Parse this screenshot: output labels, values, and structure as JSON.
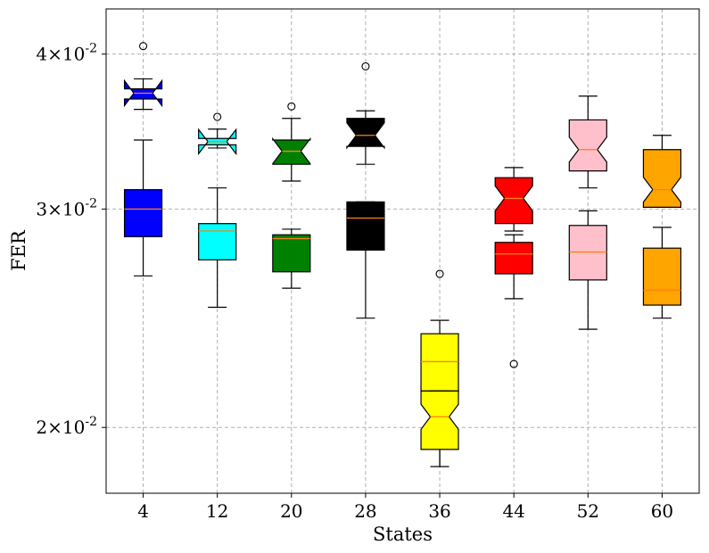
{
  "chart_data": {
    "type": "box",
    "title": "",
    "xlabel": "States",
    "ylabel": "FER",
    "yscale": "log",
    "ylim": [
      0.0177,
      0.0435
    ],
    "grid": true,
    "categories": [
      "4",
      "12",
      "20",
      "28",
      "36",
      "44",
      "52",
      "60"
    ],
    "y_ticks": [
      {
        "value": 0.02,
        "mantissa": "2",
        "exponent": "-2"
      },
      {
        "value": 0.03,
        "mantissa": "3",
        "exponent": "-2"
      },
      {
        "value": 0.04,
        "mantissa": "4",
        "exponent": "-2"
      }
    ],
    "series": [
      {
        "notched": false,
        "boxes": [
          {
            "whislo": 0.0265,
            "q1": 0.0285,
            "med": 0.03,
            "q3": 0.0311,
            "whishi": 0.0341,
            "fliers": [],
            "color": "#0000ff"
          },
          {
            "whislo": 0.025,
            "q1": 0.0273,
            "med": 0.0288,
            "q3": 0.0292,
            "whishi": 0.0312,
            "fliers": [],
            "color": "#00ffff"
          },
          {
            "whislo": 0.0259,
            "q1": 0.0267,
            "med": 0.0284,
            "q3": 0.0286,
            "whishi": 0.0289,
            "fliers": [],
            "color": "#008000"
          },
          {
            "whislo": 0.0245,
            "q1": 0.0278,
            "med": 0.0295,
            "q3": 0.0304,
            "whishi": 0.0304,
            "fliers": [],
            "color": "#000000"
          },
          {
            "whislo": 0.0186,
            "q1": 0.0214,
            "med": 0.0226,
            "q3": 0.0238,
            "whishi": 0.0244,
            "fliers": [
              0.0266
            ],
            "color": "#ffff00"
          },
          {
            "whislo": 0.0254,
            "q1": 0.0266,
            "med": 0.0276,
            "q3": 0.0282,
            "whishi": 0.0286,
            "fliers": [
              0.0225
            ],
            "color": "#ff0000"
          },
          {
            "whislo": 0.024,
            "q1": 0.0263,
            "med": 0.0277,
            "q3": 0.0291,
            "whishi": 0.0299,
            "fliers": [],
            "color": "#ffc0cb"
          },
          {
            "whislo": 0.0245,
            "q1": 0.0251,
            "med": 0.0258,
            "q3": 0.0279,
            "whishi": 0.029,
            "fliers": [],
            "color": "#ffa500"
          }
        ]
      },
      {
        "notched": true,
        "boxes": [
          {
            "whislo": 0.0361,
            "q1": 0.0368,
            "med": 0.0372,
            "q3": 0.0375,
            "whishi": 0.0382,
            "fliers": [
              0.0406
            ],
            "color": "#0000ff"
          },
          {
            "whislo": 0.0336,
            "q1": 0.0338,
            "med": 0.034,
            "q3": 0.0342,
            "whishi": 0.0348,
            "fliers": [
              0.0356
            ],
            "color": "#00ffff"
          },
          {
            "whislo": 0.0316,
            "q1": 0.0326,
            "med": 0.0334,
            "q3": 0.0341,
            "whishi": 0.0355,
            "fliers": [
              0.0363
            ],
            "color": "#008000"
          },
          {
            "whislo": 0.0326,
            "q1": 0.0337,
            "med": 0.0344,
            "q3": 0.0355,
            "whishi": 0.036,
            "fliers": [
              0.0391
            ],
            "color": "#000000"
          },
          {
            "whislo": 0.0186,
            "q1": 0.0192,
            "med": 0.0204,
            "q3": 0.0214,
            "whishi": 0.0214,
            "fliers": [],
            "color": "#ffff00"
          },
          {
            "whislo": 0.0288,
            "q1": 0.0292,
            "med": 0.0306,
            "q3": 0.0318,
            "whishi": 0.0324,
            "fliers": [],
            "color": "#ff0000"
          },
          {
            "whislo": 0.0312,
            "q1": 0.0322,
            "med": 0.0335,
            "q3": 0.0354,
            "whishi": 0.037,
            "fliers": [],
            "color": "#ffc0cb"
          },
          {
            "whislo": 0.0301,
            "q1": 0.0301,
            "med": 0.0311,
            "q3": 0.0335,
            "whishi": 0.0344,
            "fliers": [],
            "color": "#ffa500"
          }
        ]
      }
    ],
    "colors": {
      "median": "#ff7f0e",
      "whisker": "#000000",
      "grid": "#b0b0b0"
    }
  }
}
